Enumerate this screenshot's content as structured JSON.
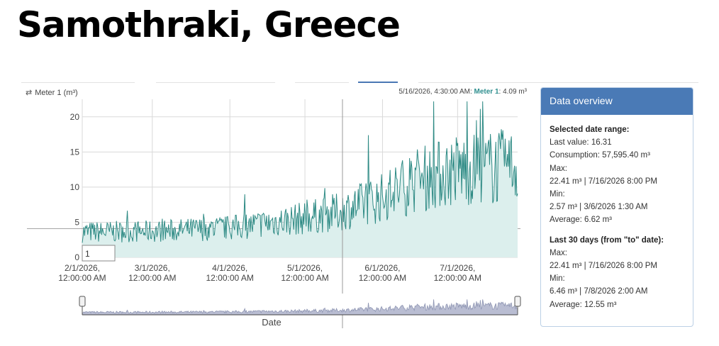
{
  "page": {
    "title": "Samothraki, Greece"
  },
  "chart": {
    "series_label": "Meter 1 (m³)",
    "tooltip": {
      "time": "5/16/2026, 4:30:00 AM:",
      "meter": "Meter 1",
      "value": ": 4.09 m³"
    },
    "range_input_value": "1",
    "navigator_xlabel": "Date",
    "colors": {
      "line": "#2d8a84",
      "area": "#dcefed",
      "navigator": "#8f96b3"
    }
  },
  "chart_data": {
    "type": "line",
    "title": "",
    "xlabel": "Date",
    "ylabel": "Meter 1 (m³)",
    "ylim": [
      0,
      22.5
    ],
    "yticks": [
      0,
      5,
      10,
      15,
      20
    ],
    "xticks": [
      {
        "line1": "2/1/2026,",
        "line2": "12:00:00 AM"
      },
      {
        "line1": "3/1/2026,",
        "line2": "12:00:00 AM"
      },
      {
        "line1": "4/1/2026,",
        "line2": "12:00:00 AM"
      },
      {
        "line1": "5/1/2026,",
        "line2": "12:00:00 AM"
      },
      {
        "line1": "6/1/2026,",
        "line2": "12:00:00 AM"
      },
      {
        "line1": "7/1/2026,",
        "line2": "12:00:00 AM"
      }
    ],
    "x_range": [
      "2/1/2026",
      "7/25/2026"
    ],
    "trend": [
      {
        "x": "2/1/2026",
        "y": 3.6
      },
      {
        "x": "3/1/2026",
        "y": 3.7
      },
      {
        "x": "4/1/2026",
        "y": 4.2
      },
      {
        "x": "5/1/2026",
        "y": 5.6
      },
      {
        "x": "5/15/2026",
        "y": 6.5
      },
      {
        "x": "6/1/2026",
        "y": 8.5
      },
      {
        "x": "6/15/2026",
        "y": 11
      },
      {
        "x": "7/1/2026",
        "y": 12.5
      },
      {
        "x": "7/25/2026",
        "y": 13
      }
    ],
    "grid": true
  },
  "overview": {
    "header": "Data overview",
    "selected": {
      "title": "Selected date range:",
      "last_value": "Last value: 16.31",
      "consumption": "Consumption: 57,595.40 m³",
      "max_label": "Max:",
      "max_value": "22.41 m³ | 7/16/2026 8:00 PM",
      "min_label": "Min:",
      "min_value": "2.57 m³ | 3/6/2026 1:30 AM",
      "average": "Average: 6.62 m³"
    },
    "last30": {
      "title": "Last 30 days (from \"to\" date):",
      "max_label": "Max:",
      "max_value": "22.41 m³ | 7/16/2026 8:00 PM",
      "min_label": "Min:",
      "min_value": "6.46 m³ | 7/8/2026 2:00 AM",
      "average": "Average: 12.55 m³"
    }
  }
}
